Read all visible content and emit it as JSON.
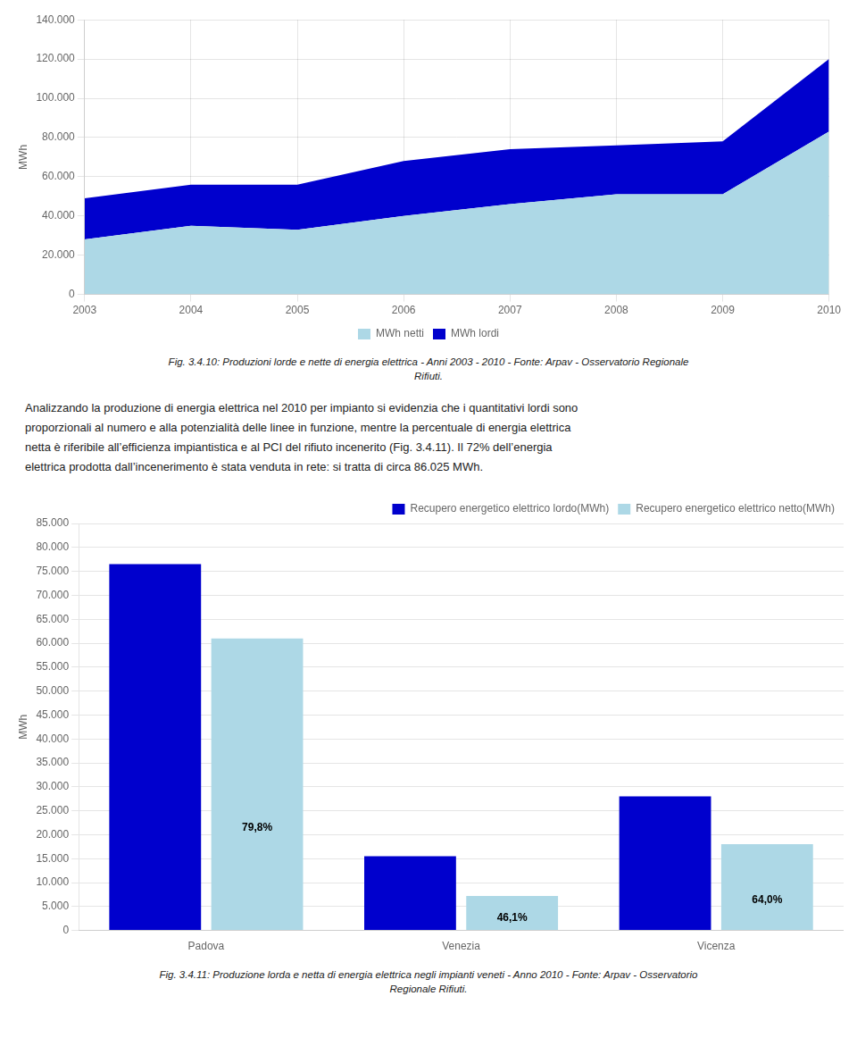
{
  "chart_data": [
    {
      "type": "area",
      "x": [
        2003,
        2004,
        2005,
        2006,
        2007,
        2008,
        2009,
        2010
      ],
      "series": [
        {
          "name": "MWh netti",
          "color": "#add8e6",
          "values": [
            28000,
            35000,
            33000,
            40000,
            46000,
            51000,
            51000,
            83000
          ]
        },
        {
          "name": "MWh lordi",
          "color": "#0000cd",
          "values": [
            49000,
            56000,
            56000,
            68000,
            74000,
            76000,
            78000,
            120000
          ]
        }
      ],
      "ylabel": "MWh",
      "xlim": [
        2003,
        2010
      ],
      "xticks": [
        2003,
        2004,
        2005,
        2006,
        2007,
        2008,
        2009,
        2010
      ],
      "ylim": [
        0,
        140000
      ],
      "yticks": [
        0,
        {
          "value": 20000,
          "label": "20.000"
        },
        {
          "value": 40000,
          "label": "40.000"
        },
        {
          "value": 60000,
          "label": "60.000"
        },
        {
          "value": 80000,
          "label": "80.000"
        },
        {
          "value": 100000,
          "label": "100.000"
        },
        {
          "value": 120000,
          "label": "120.000"
        },
        {
          "value": 140000,
          "label": "140.000"
        }
      ],
      "grid": true,
      "legend": "bottom",
      "caption": [
        "Fig. 3.4.10: Produzioni lorde e nette di energia elettrica - Anni 2003 - 2010 - Fonte: Arpav - Osservatorio Regionale",
        "Rifiuti."
      ]
    },
    {
      "type": "bar",
      "categories": [
        "Padova",
        "Venezia",
        "Vicenza"
      ],
      "series": [
        {
          "name": "Recupero energetico elettrico lordo(MWh)",
          "color": "#0000cd",
          "values": [
            76500,
            15500,
            28000
          ]
        },
        {
          "name": "Recupero energetico elettrico netto(MWh)",
          "color": "#add8e6",
          "values": [
            61000,
            7200,
            18000
          ]
        }
      ],
      "ylabel": "MWh",
      "ylim": [
        0,
        85000
      ],
      "yticks": [
        0,
        {
          "value": 5000,
          "label": "5.000"
        },
        {
          "value": 10000,
          "label": "10.000"
        },
        {
          "value": 15000,
          "label": "15.000"
        },
        {
          "value": 20000,
          "label": "20.000"
        },
        {
          "value": 25000,
          "label": "25.000"
        },
        {
          "value": 30000,
          "label": "30.000"
        },
        {
          "value": 35000,
          "label": "35.000"
        },
        {
          "value": 40000,
          "label": "40.000"
        },
        {
          "value": 45000,
          "label": "45.000"
        },
        {
          "value": 50000,
          "label": "50.000"
        },
        {
          "value": 55000,
          "label": "55.000"
        },
        {
          "value": 60000,
          "label": "60.000"
        },
        {
          "value": 65000,
          "label": "65.000"
        },
        {
          "value": 70000,
          "label": "70.000"
        },
        {
          "value": 75000,
          "label": "75.000"
        },
        {
          "value": 80000,
          "label": "80.000"
        },
        {
          "value": 85000,
          "label": "85.000"
        }
      ],
      "grid": true,
      "legend": "upper right",
      "annotations": [
        {
          "category": "Padova",
          "series": "Recupero energetico elettrico netto(MWh)",
          "text": "79,8%"
        },
        {
          "category": "Venezia",
          "series": "Recupero energetico elettrico netto(MWh)",
          "text": "46,1%"
        },
        {
          "category": "Vicenza",
          "series": "Recupero energetico elettrico netto(MWh)",
          "text": "64,0%"
        }
      ],
      "caption": [
        "Fig. 3.4.11: Produzione lorda e netta di energia elettrica negli impianti veneti - Anno 2010 - Fonte: Arpav - Osservatorio",
        "Regionale Rifiuti."
      ]
    }
  ],
  "text": [
    "Analizzando la produzione di energia elettrica nel 2010 per impianto si evidenzia che i quantitativi lordi sono",
    "proporzionali al numero e alla potenzialità delle linee in funzione, mentre la percentuale di energia elettrica",
    "netta è riferibile all’efficienza impiantistica e al PCI del rifiuto incenerito (Fig. 3.4.11). Il 72% dell’energia",
    "elettrica prodotta dall’incenerimento è stata venduta in rete: si tratta di circa 86.025 MWh."
  ]
}
